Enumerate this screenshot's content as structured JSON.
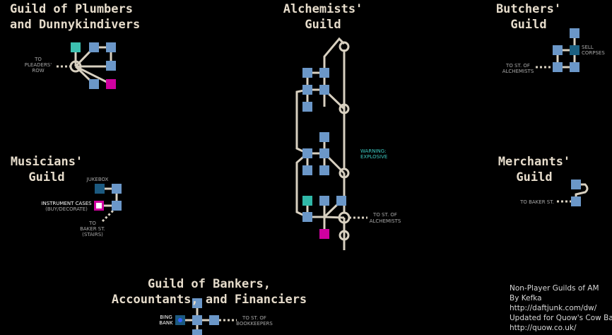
{
  "guilds": [
    {
      "title": [
        "Guild of Plumbers",
        "and Dunnykindivers"
      ],
      "labels": [
        [
          "TO",
          "PLEADERS'",
          "ROW"
        ]
      ]
    },
    {
      "title": [
        "Alchemists'",
        "Guild"
      ],
      "labels": [
        [
          "WARNING:",
          "EXPLOSIVE"
        ],
        [
          "TO ST. OF",
          "ALCHEMISTS"
        ]
      ]
    },
    {
      "title": [
        "Butchers'",
        "Guild"
      ],
      "labels": [
        [
          "SELL",
          "CORPSES"
        ],
        [
          "TO ST. OF",
          "ALCHEMISTS"
        ]
      ]
    },
    {
      "title": [
        "Musicians'",
        "Guild"
      ],
      "labels": [
        [
          "JUKEBOX"
        ],
        [
          "INSTRUMENT CASES",
          "(BUY/DECORATE)"
        ],
        [
          "TO",
          "BAKER ST.",
          "(STAIRS)"
        ]
      ]
    },
    {
      "title": [
        "Merchants'",
        "Guild"
      ],
      "labels": [
        [
          "TO BAKER ST."
        ]
      ]
    },
    {
      "title": [
        "Guild of Bankers,",
        "Accountants, and Financiers"
      ],
      "labels": [
        [
          "BING",
          "BANK"
        ],
        [
          "TO ST. OF",
          "BOOKKEEPERS"
        ]
      ]
    }
  ],
  "credits": [
    "Non-Player Guilds of AM",
    "By Kefka",
    "http://daftjunk.com/dw/",
    "Updated for Quow's Cow Bar",
    "http://quow.co.uk/"
  ]
}
